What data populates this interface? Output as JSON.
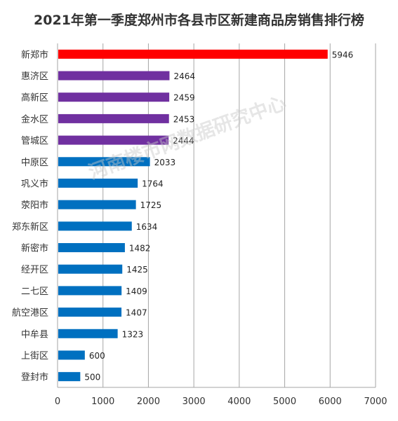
{
  "chart_data": {
    "type": "bar",
    "orientation": "horizontal",
    "title": "2021年第一季度郑州市各县市区新建商品房销售排行榜",
    "categories": [
      "新郑市",
      "惠济区",
      "高新区",
      "金水区",
      "管城区",
      "中原区",
      "巩义市",
      "荥阳市",
      "郑东新区",
      "新密市",
      "经开区",
      "二七区",
      "航空港区",
      "中牟县",
      "上街区",
      "登封市"
    ],
    "values": [
      5946,
      2464,
      2459,
      2453,
      2444,
      2033,
      1764,
      1725,
      1634,
      1482,
      1425,
      1409,
      1407,
      1323,
      600,
      500
    ],
    "colors": [
      "#ff0000",
      "#7030a0",
      "#7030a0",
      "#7030a0",
      "#7030a0",
      "#0070c0",
      "#0070c0",
      "#0070c0",
      "#0070c0",
      "#0070c0",
      "#0070c0",
      "#0070c0",
      "#0070c0",
      "#0070c0",
      "#0070c0",
      "#0070c0"
    ],
    "xlim": [
      0,
      7000
    ],
    "xticks": [
      0,
      1000,
      2000,
      3000,
      4000,
      5000,
      6000,
      7000
    ],
    "grid": "vertical",
    "legend": "none"
  },
  "watermark": "河南楼市网数据研究中心"
}
